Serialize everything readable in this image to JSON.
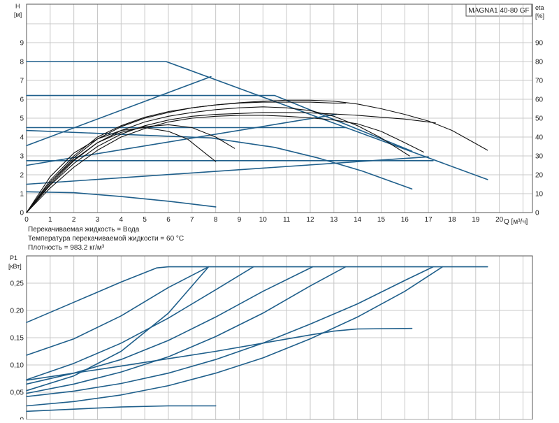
{
  "chart_data": [
    {
      "type": "line",
      "badge": "MAGNA1 40-80 GF",
      "ylabel": "H",
      "yunit": "[м]",
      "y2label": "eta",
      "y2unit": "[%]",
      "xlabel": "Q [м³/ч]",
      "xlim": [
        0,
        20
      ],
      "ylim": [
        0,
        10
      ],
      "y2lim": [
        0,
        100
      ],
      "x_ticks": [
        "0",
        "1",
        "2",
        "3",
        "4",
        "5",
        "6",
        "7",
        "8",
        "9",
        "10",
        "11",
        "12",
        "13",
        "14",
        "15",
        "16",
        "17",
        "18",
        "19",
        "20"
      ],
      "y_ticks": [
        "0",
        "1",
        "2",
        "3",
        "4",
        "5",
        "6",
        "7",
        "8",
        "9"
      ],
      "y2_ticks": [
        "0",
        "10",
        "20",
        "30",
        "40",
        "50",
        "60",
        "70",
        "80",
        "90"
      ],
      "grid": true,
      "notes": [
        "Перекачиваемая жидкость = Вода",
        "Температура перекачиваемой жидкости = 60 °C",
        "Плотность = 983.2 кг/м³"
      ],
      "series": [
        {
          "style": "blue",
          "x": [
            0,
            5.9,
            19.5
          ],
          "y": [
            8.0,
            8.0,
            1.75
          ]
        },
        {
          "style": "blue",
          "x": [
            0,
            10.5,
            16.3
          ],
          "y": [
            6.2,
            6.2,
            3.25
          ]
        },
        {
          "style": "blue",
          "x": [
            0,
            13.5
          ],
          "y": [
            4.5,
            4.5
          ]
        },
        {
          "style": "blue",
          "x": [
            0,
            17.2
          ],
          "y": [
            2.75,
            2.75
          ]
        },
        {
          "style": "blue",
          "x": [
            0,
            7.8,
            10.5,
            12.3,
            14.2,
            16.3
          ],
          "y": [
            4.35,
            3.95,
            3.45,
            2.9,
            2.2,
            1.25
          ]
        },
        {
          "style": "blue",
          "x": [
            0,
            2,
            4,
            6,
            8
          ],
          "y": [
            1.1,
            1.05,
            0.85,
            0.6,
            0.3
          ]
        },
        {
          "style": "blue",
          "x": [
            0,
            7.8
          ],
          "y": [
            3.55,
            7.2
          ]
        },
        {
          "style": "blue",
          "x": [
            0,
            13.1
          ],
          "y": [
            2.5,
            5.2
          ]
        },
        {
          "style": "blue",
          "x": [
            0,
            17.0
          ],
          "y": [
            1.5,
            2.95
          ]
        },
        {
          "style": "black",
          "x": [
            0,
            1,
            2,
            3,
            4,
            5,
            6,
            7,
            8,
            9,
            10,
            11,
            12,
            13,
            14,
            15,
            16,
            17,
            18,
            19,
            19.5
          ],
          "y": [
            0,
            1.6,
            2.9,
            3.9,
            4.55,
            5.0,
            5.3,
            5.55,
            5.7,
            5.82,
            5.9,
            5.95,
            5.95,
            5.9,
            5.75,
            5.5,
            5.2,
            4.85,
            4.35,
            3.65,
            3.3
          ]
        },
        {
          "style": "black",
          "x": [
            0,
            1,
            2,
            3,
            4,
            5,
            6,
            7,
            8,
            9,
            10,
            11,
            12,
            13,
            13.5
          ],
          "y": [
            0,
            1.7,
            3.0,
            4.0,
            4.6,
            5.05,
            5.35,
            5.55,
            5.7,
            5.8,
            5.85,
            5.85,
            5.85,
            5.8,
            5.8
          ]
        },
        {
          "style": "black",
          "x": [
            0,
            1,
            2,
            3,
            4,
            5,
            6,
            7,
            8,
            9,
            10,
            11,
            12,
            13,
            14,
            15,
            16,
            17,
            17.3
          ],
          "y": [
            0,
            1.45,
            2.6,
            3.5,
            4.15,
            4.6,
            4.9,
            5.1,
            5.2,
            5.25,
            5.3,
            5.3,
            5.28,
            5.22,
            5.15,
            5.05,
            4.95,
            4.8,
            4.75
          ]
        },
        {
          "style": "black",
          "x": [
            0,
            1,
            2,
            3,
            4,
            5,
            6,
            7,
            8,
            9,
            10,
            11,
            12,
            13,
            14,
            15,
            16,
            16.8
          ],
          "y": [
            0,
            1.3,
            2.4,
            3.3,
            4.0,
            4.45,
            4.8,
            5.0,
            5.1,
            5.15,
            5.15,
            5.1,
            5.02,
            4.9,
            4.7,
            4.3,
            3.7,
            3.2
          ]
        },
        {
          "style": "black",
          "x": [
            0,
            1,
            2,
            3,
            4,
            5,
            6,
            7,
            8,
            9,
            10,
            11,
            12,
            13,
            14,
            15,
            16.2
          ],
          "y": [
            0,
            1.5,
            2.75,
            3.7,
            4.35,
            4.8,
            5.1,
            5.3,
            5.45,
            5.55,
            5.6,
            5.55,
            5.4,
            5.1,
            4.6,
            3.95,
            3.0
          ]
        },
        {
          "style": "black",
          "x": [
            0,
            1,
            2,
            3,
            4,
            5,
            6,
            7,
            8,
            8.8
          ],
          "y": [
            0,
            1.6,
            2.8,
            3.7,
            4.25,
            4.55,
            4.65,
            4.5,
            4.0,
            3.4
          ]
        },
        {
          "style": "black",
          "x": [
            0,
            1,
            2,
            3,
            4,
            5,
            6,
            6.8,
            7.5,
            8.0
          ],
          "y": [
            0,
            1.9,
            3.15,
            3.9,
            4.35,
            4.5,
            4.3,
            3.9,
            3.2,
            2.7
          ]
        }
      ]
    },
    {
      "type": "line",
      "ylabel": "P1",
      "yunit": "[кВт]",
      "xlim": [
        0,
        20
      ],
      "ylim": [
        0,
        0.3
      ],
      "y_ticks": [
        "0",
        "0,05",
        "0,10",
        "0,15",
        "0.20",
        "0,25"
      ],
      "grid": true,
      "series": [
        {
          "style": "blue",
          "x": [
            0,
            2,
            4,
            5.5,
            6.0,
            19.5
          ],
          "y": [
            0.178,
            0.215,
            0.252,
            0.278,
            0.28,
            0.28
          ]
        },
        {
          "style": "blue",
          "x": [
            0,
            2,
            4,
            6,
            7.7
          ],
          "y": [
            0.118,
            0.148,
            0.19,
            0.242,
            0.28
          ]
        },
        {
          "style": "blue",
          "x": [
            0,
            2,
            4,
            6,
            8,
            9.6
          ],
          "y": [
            0.073,
            0.103,
            0.14,
            0.186,
            0.238,
            0.28
          ]
        },
        {
          "style": "blue",
          "x": [
            0,
            2,
            4,
            6,
            7.7
          ],
          "y": [
            0.053,
            0.08,
            0.125,
            0.195,
            0.28
          ]
        },
        {
          "style": "blue",
          "x": [
            0,
            2,
            4,
            6,
            8,
            10,
            12.1
          ],
          "y": [
            0.065,
            0.085,
            0.11,
            0.145,
            0.188,
            0.235,
            0.28
          ]
        },
        {
          "style": "blue",
          "x": [
            0,
            2,
            4,
            6,
            8,
            10,
            12,
            13.5
          ],
          "y": [
            0.048,
            0.065,
            0.087,
            0.115,
            0.152,
            0.195,
            0.245,
            0.28
          ]
        },
        {
          "style": "blue",
          "x": [
            0,
            4,
            8,
            10,
            12,
            13,
            14,
            16.3
          ],
          "y": [
            0.072,
            0.098,
            0.125,
            0.14,
            0.155,
            0.162,
            0.166,
            0.167
          ]
        },
        {
          "style": "blue",
          "x": [
            0,
            2,
            4,
            6,
            8,
            10,
            12,
            14,
            16,
            17.2
          ],
          "y": [
            0.042,
            0.052,
            0.066,
            0.085,
            0.11,
            0.14,
            0.175,
            0.212,
            0.255,
            0.28
          ]
        },
        {
          "style": "blue",
          "x": [
            0,
            2,
            4,
            6,
            8,
            10,
            12,
            14,
            16,
            17.6
          ],
          "y": [
            0.025,
            0.033,
            0.045,
            0.062,
            0.085,
            0.113,
            0.148,
            0.188,
            0.235,
            0.28
          ]
        },
        {
          "style": "blue",
          "x": [
            0,
            2,
            4,
            6,
            8
          ],
          "y": [
            0.015,
            0.019,
            0.023,
            0.025,
            0.025
          ]
        }
      ]
    }
  ]
}
